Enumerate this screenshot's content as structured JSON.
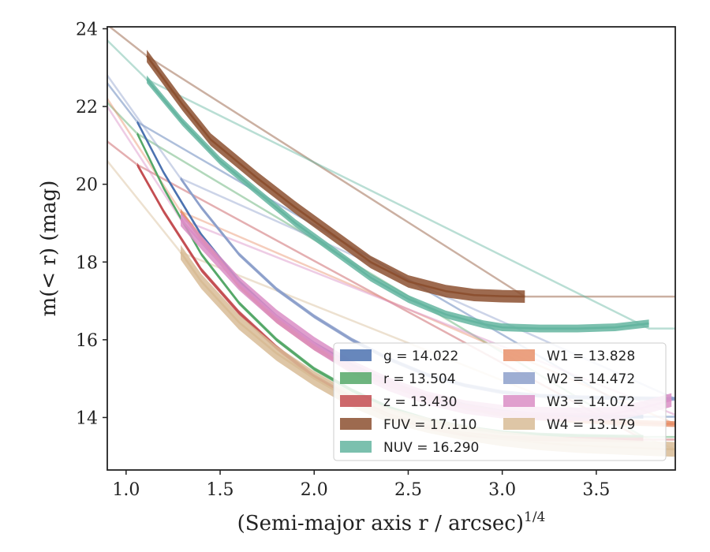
{
  "chart_data": {
    "type": "line",
    "xlabel": "(Semi-major axis r / arcsec)",
    "xlabel_sup": "1/4",
    "ylabel": "m(< r) (mag)",
    "xlim": [
      0.9,
      3.92
    ],
    "ylim": [
      24.05,
      12.65
    ],
    "y_inverted": true,
    "xticks": [
      1.0,
      1.5,
      2.0,
      2.5,
      3.0,
      3.5
    ],
    "xtick_labels": [
      "1.0",
      "1.5",
      "2.0",
      "2.5",
      "3.0",
      "3.5"
    ],
    "yticks": [
      14,
      16,
      18,
      20,
      22,
      24
    ],
    "ytick_labels": [
      "14",
      "16",
      "18",
      "20",
      "22",
      "24"
    ],
    "grid": false,
    "legend_position": "lower-right",
    "series": [
      {
        "name": "g = 14.022",
        "band": "g",
        "mag": "14.022",
        "color": "#4c72b0",
        "band_width": 0.1,
        "x_measured": [
          1.06,
          1.2,
          1.4,
          1.6,
          1.8,
          2.0,
          2.2,
          2.4,
          2.6,
          2.8,
          3.0,
          3.2,
          3.4,
          3.6,
          3.75
        ],
        "y_measured": [
          21.6,
          20.3,
          18.7,
          17.5,
          16.6,
          15.9,
          15.35,
          14.9,
          14.55,
          14.32,
          14.15,
          14.07,
          14.03,
          14.02,
          14.02
        ],
        "x_model": [
          0.9,
          1.06,
          3.75,
          3.92
        ],
        "y_model": [
          22.6,
          21.6,
          14.02,
          14.02
        ]
      },
      {
        "name": "r = 13.504",
        "band": "r",
        "mag": "13.504",
        "color": "#55a868",
        "band_width": 0.1,
        "x_measured": [
          1.06,
          1.2,
          1.4,
          1.6,
          1.8,
          2.0,
          2.2,
          2.4,
          2.6,
          2.8,
          3.0,
          3.2,
          3.4,
          3.6,
          3.75
        ],
        "y_measured": [
          21.3,
          19.9,
          18.2,
          16.95,
          16.0,
          15.25,
          14.7,
          14.25,
          13.95,
          13.75,
          13.62,
          13.56,
          13.53,
          13.51,
          13.5
        ],
        "x_model": [
          0.9,
          1.06,
          3.75,
          3.92
        ],
        "y_model": [
          22.1,
          21.3,
          13.5,
          13.5
        ]
      },
      {
        "name": "z = 13.430",
        "band": "z",
        "mag": "13.430",
        "color": "#c44e52",
        "band_width": 0.12,
        "x_measured": [
          1.06,
          1.2,
          1.4,
          1.6,
          1.8,
          2.0,
          2.2,
          2.4,
          2.6,
          2.8,
          3.0,
          3.2,
          3.4,
          3.6,
          3.75
        ],
        "y_measured": [
          20.5,
          19.3,
          17.8,
          16.7,
          15.8,
          15.05,
          14.5,
          14.05,
          13.75,
          13.57,
          13.48,
          13.45,
          13.44,
          13.43,
          13.43
        ],
        "x_model": [
          0.9,
          1.06,
          3.75,
          3.92
        ],
        "y_model": [
          21.1,
          20.5,
          13.43,
          13.43
        ]
      },
      {
        "name": "FUV = 17.110",
        "band": "FUV",
        "mag": "17.110",
        "color": "#8c5030",
        "band_width": 0.32,
        "x_measured": [
          1.11,
          1.3,
          1.45,
          1.7,
          1.9,
          2.1,
          2.3,
          2.5,
          2.7,
          2.85,
          3.0,
          3.12
        ],
        "y_measured": [
          23.3,
          22.05,
          21.15,
          20.15,
          19.4,
          18.7,
          18.0,
          17.5,
          17.25,
          17.15,
          17.12,
          17.11
        ],
        "x_model": [
          0.9,
          1.11,
          3.12,
          3.92
        ],
        "y_model": [
          24.1,
          23.3,
          17.11,
          17.11
        ]
      },
      {
        "name": "NUV = 16.290",
        "band": "NUV",
        "mag": "16.290",
        "color": "#64b5a0",
        "band_width": 0.2,
        "x_measured": [
          1.11,
          1.3,
          1.5,
          1.7,
          1.9,
          2.1,
          2.3,
          2.5,
          2.7,
          2.9,
          3.0,
          3.2,
          3.4,
          3.6,
          3.78
        ],
        "y_measured": [
          22.7,
          21.6,
          20.6,
          19.8,
          19.0,
          18.3,
          17.6,
          17.05,
          16.65,
          16.4,
          16.32,
          16.29,
          16.29,
          16.32,
          16.42
        ],
        "x_model": [
          0.9,
          1.11,
          3.78,
          3.92
        ],
        "y_model": [
          23.7,
          22.7,
          16.29,
          16.29
        ]
      },
      {
        "name": "W1 = 13.828",
        "band": "W1",
        "mag": "13.828",
        "color": "#e8906a",
        "band_width": 0.15,
        "x_measured": [
          1.29,
          1.4,
          1.6,
          1.8,
          2.0,
          2.2,
          2.4,
          2.6,
          2.8,
          3.0,
          3.2,
          3.4,
          3.6,
          3.92
        ],
        "y_measured": [
          19.3,
          18.6,
          17.4,
          16.5,
          15.8,
          15.25,
          14.85,
          14.52,
          14.27,
          14.1,
          14.0,
          13.93,
          13.88,
          13.83
        ],
        "x_model": [
          0.9,
          1.29,
          3.92
        ],
        "y_model": [
          22.2,
          19.3,
          13.83
        ]
      },
      {
        "name": "W2 = 14.472",
        "band": "W2",
        "mag": "14.472",
        "color": "#8da0cb",
        "band_width": 0.1,
        "x_measured": [
          1.29,
          1.4,
          1.6,
          1.8,
          2.0,
          2.2,
          2.4,
          2.6,
          2.8,
          3.0,
          3.2,
          3.4,
          3.6,
          3.92
        ],
        "y_measured": [
          20.15,
          19.4,
          18.2,
          17.3,
          16.6,
          16.0,
          15.5,
          15.1,
          14.83,
          14.65,
          14.56,
          14.52,
          14.5,
          14.48
        ],
        "x_model": [
          0.9,
          1.29,
          3.92
        ],
        "y_model": [
          22.8,
          20.15,
          14.48
        ]
      },
      {
        "name": "W3 = 14.072",
        "band": "W3",
        "mag": "14.072",
        "color": "#da8ec6",
        "band_width": 0.35,
        "x_measured": [
          1.29,
          1.4,
          1.6,
          1.8,
          2.0,
          2.2,
          2.4,
          2.6,
          2.8,
          3.0,
          3.2,
          3.4,
          3.6,
          3.75,
          3.9
        ],
        "y_measured": [
          19.1,
          18.5,
          17.45,
          16.6,
          15.9,
          15.3,
          14.85,
          14.5,
          14.27,
          14.15,
          14.1,
          14.08,
          14.1,
          14.25,
          14.45
        ],
        "x_model": [
          0.9,
          1.29,
          3.92
        ],
        "y_model": [
          22.0,
          19.1,
          14.07
        ]
      },
      {
        "name": "W4 = 13.179",
        "band": "W4",
        "mag": "13.179",
        "color": "#d8bc96",
        "band_width": 0.38,
        "x_measured": [
          1.29,
          1.4,
          1.6,
          1.8,
          2.0,
          2.2,
          2.4,
          2.6,
          2.8,
          3.0,
          3.2,
          3.4,
          3.6,
          3.8,
          3.92
        ],
        "y_measured": [
          18.25,
          17.5,
          16.45,
          15.65,
          15.0,
          14.45,
          14.05,
          13.8,
          13.6,
          13.45,
          13.35,
          13.28,
          13.24,
          13.2,
          13.18
        ],
        "x_model": [
          0.9,
          1.29,
          3.92
        ],
        "y_model": [
          20.6,
          18.25,
          13.18
        ]
      }
    ]
  }
}
